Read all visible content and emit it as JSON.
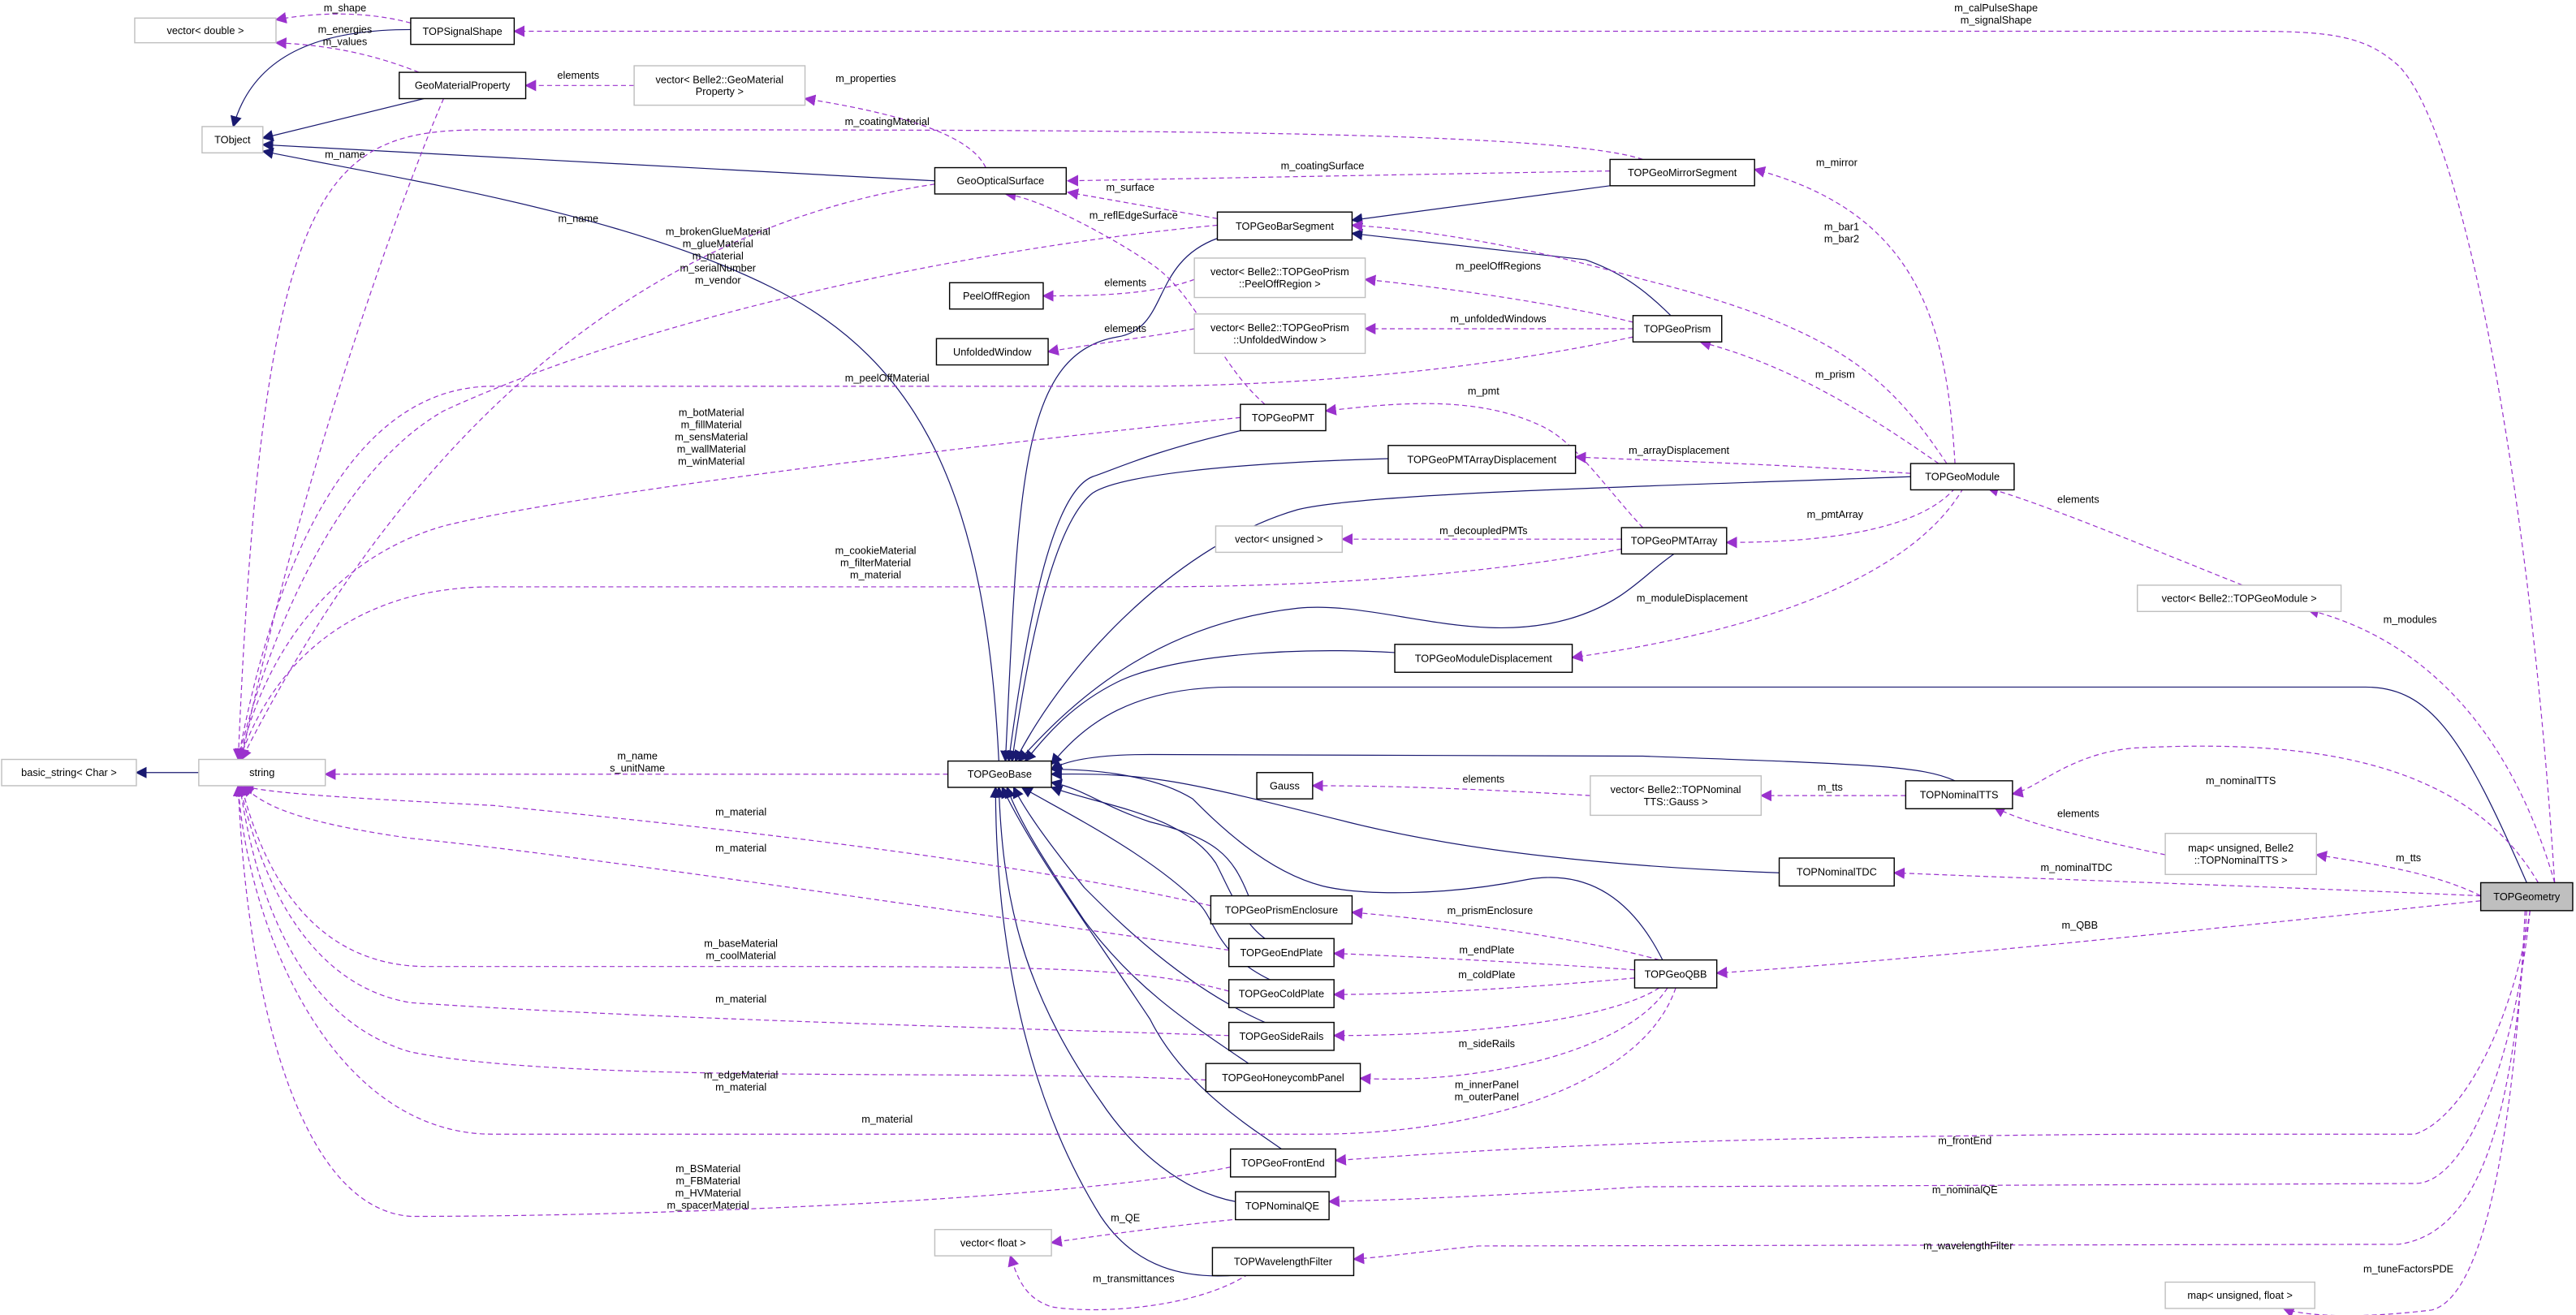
{
  "colors": {
    "inherit": "#191970",
    "member": "#9a32cd",
    "focus_fill": "#bfbfbf",
    "external_border": "#bfbfbf",
    "class_border": "#000000"
  },
  "nodes": {
    "vec_double": {
      "label": [
        "vector< double >"
      ],
      "style": "external"
    },
    "TOPSignalShape": {
      "label": [
        "TOPSignalShape"
      ],
      "style": "class"
    },
    "GeoMaterialProperty": {
      "label": [
        "GeoMaterialProperty"
      ],
      "style": "class"
    },
    "vec_GMP": {
      "label": [
        "vector< Belle2::GeoMaterial",
        "Property >"
      ],
      "style": "external"
    },
    "TObject": {
      "label": [
        "TObject"
      ],
      "style": "external"
    },
    "GeoOpticalSurface": {
      "label": [
        "GeoOpticalSurface"
      ],
      "style": "class"
    },
    "TOPGeoMirrorSegment": {
      "label": [
        "TOPGeoMirrorSegment"
      ],
      "style": "class"
    },
    "TOPGeoBarSegment": {
      "label": [
        "TOPGeoBarSegment"
      ],
      "style": "class"
    },
    "PeelOffRegion": {
      "label": [
        "PeelOffRegion"
      ],
      "style": "class"
    },
    "vec_Peel": {
      "label": [
        "vector< Belle2::TOPGeoPrism",
        "::PeelOffRegion >"
      ],
      "style": "external"
    },
    "UnfoldedWindow": {
      "label": [
        "UnfoldedWindow"
      ],
      "style": "class"
    },
    "vec_Unf": {
      "label": [
        "vector< Belle2::TOPGeoPrism",
        "::UnfoldedWindow >"
      ],
      "style": "external"
    },
    "TOPGeoPrism": {
      "label": [
        "TOPGeoPrism"
      ],
      "style": "class"
    },
    "TOPGeoPMT": {
      "label": [
        "TOPGeoPMT"
      ],
      "style": "class"
    },
    "TOPGeoPMTArrayDisplacement": {
      "label": [
        "TOPGeoPMTArrayDisplacement"
      ],
      "style": "class"
    },
    "TOPGeoModule": {
      "label": [
        "TOPGeoModule"
      ],
      "style": "class"
    },
    "vec_unsigned": {
      "label": [
        "vector< unsigned >"
      ],
      "style": "external"
    },
    "TOPGeoPMTArray": {
      "label": [
        "TOPGeoPMTArray"
      ],
      "style": "class"
    },
    "TOPGeoModuleDisplacement": {
      "label": [
        "TOPGeoModuleDisplacement"
      ],
      "style": "class"
    },
    "vec_Module": {
      "label": [
        "vector< Belle2::TOPGeoModule >"
      ],
      "style": "external"
    },
    "basic_string": {
      "label": [
        "basic_string< Char >"
      ],
      "style": "external"
    },
    "string": {
      "label": [
        "string"
      ],
      "style": "external"
    },
    "TOPGeoBase": {
      "label": [
        "TOPGeoBase"
      ],
      "style": "class"
    },
    "Gauss": {
      "label": [
        "Gauss"
      ],
      "style": "class"
    },
    "vec_Gauss": {
      "label": [
        "vector< Belle2::TOPNominal",
        "TTS::Gauss >"
      ],
      "style": "external"
    },
    "TOPNominalTTS": {
      "label": [
        "TOPNominalTTS"
      ],
      "style": "class"
    },
    "map_TTS": {
      "label": [
        "map< unsigned, Belle2",
        "::TOPNominalTTS >"
      ],
      "style": "external"
    },
    "TOPNominalTDC": {
      "label": [
        "TOPNominalTDC"
      ],
      "style": "class"
    },
    "TOPGeometry": {
      "label": [
        "TOPGeometry"
      ],
      "style": "focus"
    },
    "TOPGeoPrismEnclosure": {
      "label": [
        "TOPGeoPrismEnclosure"
      ],
      "style": "class"
    },
    "TOPGeoEndPlate": {
      "label": [
        "TOPGeoEndPlate"
      ],
      "style": "class"
    },
    "TOPGeoQBB": {
      "label": [
        "TOPGeoQBB"
      ],
      "style": "class"
    },
    "TOPGeoColdPlate": {
      "label": [
        "TOPGeoColdPlate"
      ],
      "style": "class"
    },
    "TOPGeoSideRails": {
      "label": [
        "TOPGeoSideRails"
      ],
      "style": "class"
    },
    "TOPGeoHoneycombPanel": {
      "label": [
        "TOPGeoHoneycombPanel"
      ],
      "style": "class"
    },
    "TOPGeoFrontEnd": {
      "label": [
        "TOPGeoFrontEnd"
      ],
      "style": "class"
    },
    "TOPNominalQE": {
      "label": [
        "TOPNominalQE"
      ],
      "style": "class"
    },
    "vec_float": {
      "label": [
        "vector< float >"
      ],
      "style": "external"
    },
    "TOPWavelengthFilter": {
      "label": [
        "TOPWavelengthFilter"
      ],
      "style": "class"
    },
    "map_float": {
      "label": [
        "map< unsigned, float >"
      ],
      "style": "external"
    }
  },
  "edges": [
    {
      "from": "TOPSignalShape",
      "to": "TObject",
      "kind": "inherit",
      "label": []
    },
    {
      "from": "GeoMaterialProperty",
      "to": "TObject",
      "kind": "inherit",
      "label": []
    },
    {
      "from": "GeoOpticalSurface",
      "to": "TObject",
      "kind": "inherit",
      "label": []
    },
    {
      "from": "TOPGeoBase",
      "to": "TObject",
      "kind": "inherit",
      "label": []
    },
    {
      "from": "TOPGeoMirrorSegment",
      "to": "TOPGeoBarSegment",
      "kind": "inherit",
      "label": []
    },
    {
      "from": "TOPGeoPrism",
      "to": "TOPGeoBarSegment",
      "kind": "inherit",
      "label": []
    },
    {
      "from": "TOPGeoBarSegment",
      "to": "TOPGeoBase",
      "kind": "inherit",
      "label": []
    },
    {
      "from": "TOPGeoPMT",
      "to": "TOPGeoBase",
      "kind": "inherit",
      "label": []
    },
    {
      "from": "TOPGeoPMTArrayDisplacement",
      "to": "TOPGeoBase",
      "kind": "inherit",
      "label": []
    },
    {
      "from": "TOPGeoModule",
      "to": "TOPGeoBase",
      "kind": "inherit",
      "label": []
    },
    {
      "from": "TOPGeoPMTArray",
      "to": "TOPGeoBase",
      "kind": "inherit",
      "label": []
    },
    {
      "from": "TOPGeoModuleDisplacement",
      "to": "TOPGeoBase",
      "kind": "inherit",
      "label": []
    },
    {
      "from": "TOPGeometry",
      "to": "TOPGeoBase",
      "kind": "inherit",
      "label": []
    },
    {
      "from": "TOPNominalTTS",
      "to": "TOPGeoBase",
      "kind": "inherit",
      "label": []
    },
    {
      "from": "TOPNominalTDC",
      "to": "TOPGeoBase",
      "kind": "inherit",
      "label": []
    },
    {
      "from": "TOPGeoPrismEnclosure",
      "to": "TOPGeoBase",
      "kind": "inherit",
      "label": []
    },
    {
      "from": "TOPGeoEndPlate",
      "to": "TOPGeoBase",
      "kind": "inherit",
      "label": []
    },
    {
      "from": "TOPGeoQBB",
      "to": "TOPGeoBase",
      "kind": "inherit",
      "label": []
    },
    {
      "from": "TOPGeoColdPlate",
      "to": "TOPGeoBase",
      "kind": "inherit",
      "label": []
    },
    {
      "from": "TOPGeoSideRails",
      "to": "TOPGeoBase",
      "kind": "inherit",
      "label": []
    },
    {
      "from": "TOPGeoHoneycombPanel",
      "to": "TOPGeoBase",
      "kind": "inherit",
      "label": []
    },
    {
      "from": "TOPGeoFrontEnd",
      "to": "TOPGeoBase",
      "kind": "inherit",
      "label": []
    },
    {
      "from": "TOPNominalQE",
      "to": "TOPGeoBase",
      "kind": "inherit",
      "label": []
    },
    {
      "from": "TOPWavelengthFilter",
      "to": "TOPGeoBase",
      "kind": "inherit",
      "label": []
    },
    {
      "from": "string",
      "to": "basic_string",
      "kind": "inherit",
      "label": []
    },
    {
      "from": "TOPSignalShape",
      "to": "vec_double",
      "kind": "member",
      "label": [
        "m_shape"
      ]
    },
    {
      "from": "GeoMaterialProperty",
      "to": "vec_double",
      "kind": "member",
      "label": [
        "m_energies",
        "m_values"
      ]
    },
    {
      "from": "vec_GMP",
      "to": "GeoMaterialProperty",
      "kind": "member",
      "label": [
        "elements"
      ]
    },
    {
      "from": "GeoMaterialProperty",
      "to": "string",
      "kind": "member",
      "label": [
        "m_name"
      ]
    },
    {
      "from": "GeoOpticalSurface",
      "to": "vec_GMP",
      "kind": "member",
      "label": [
        "m_properties"
      ]
    },
    {
      "from": "GeoOpticalSurface",
      "to": "string",
      "kind": "member",
      "label": [
        "m_name"
      ]
    },
    {
      "from": "TOPGeoMirrorSegment",
      "to": "string",
      "kind": "member",
      "label": [
        "m_coatingMaterial"
      ]
    },
    {
      "from": "TOPGeoMirrorSegment",
      "to": "GeoOpticalSurface",
      "kind": "member",
      "label": [
        "m_coatingSurface"
      ]
    },
    {
      "from": "TOPGeoBarSegment",
      "to": "GeoOpticalSurface",
      "kind": "member",
      "label": [
        "m_surface"
      ]
    },
    {
      "from": "TOPGeoBarSegment",
      "to": "string",
      "kind": "member",
      "label": [
        "m_brokenGlueMaterial",
        "m_glueMaterial",
        "m_material",
        "m_serialNumber",
        "m_vendor"
      ]
    },
    {
      "from": "TOPGeoPMT",
      "to": "GeoOpticalSurface",
      "kind": "member",
      "label": [
        "m_reflEdgeSurface"
      ]
    },
    {
      "from": "vec_Peel",
      "to": "PeelOffRegion",
      "kind": "member",
      "label": [
        "elements"
      ]
    },
    {
      "from": "vec_Unf",
      "to": "UnfoldedWindow",
      "kind": "member",
      "label": [
        "elements"
      ]
    },
    {
      "from": "TOPGeoPrism",
      "to": "vec_Peel",
      "kind": "member",
      "label": [
        "m_peelOffRegions"
      ]
    },
    {
      "from": "TOPGeoPrism",
      "to": "vec_Unf",
      "kind": "member",
      "label": [
        "m_unfoldedWindows"
      ]
    },
    {
      "from": "TOPGeoPrism",
      "to": "string",
      "kind": "member",
      "label": [
        "m_peelOffMaterial"
      ]
    },
    {
      "from": "TOPGeoPMT",
      "to": "string",
      "kind": "member",
      "label": [
        "m_botMaterial",
        "m_fillMaterial",
        "m_sensMaterial",
        "m_wallMaterial",
        "m_winMaterial"
      ]
    },
    {
      "from": "TOPGeoPMTArray",
      "to": "TOPGeoPMT",
      "kind": "member",
      "label": [
        "m_pmt"
      ]
    },
    {
      "from": "TOPGeoModule",
      "to": "TOPGeoPMTArrayDisplacement",
      "kind": "member",
      "label": [
        "m_arrayDisplacement"
      ]
    },
    {
      "from": "TOPGeoModule",
      "to": "TOPGeoMirrorSegment",
      "kind": "member",
      "label": [
        "m_mirror"
      ]
    },
    {
      "from": "TOPGeoModule",
      "to": "TOPGeoBarSegment",
      "kind": "member",
      "label": [
        "m_bar1",
        "m_bar2"
      ]
    },
    {
      "from": "TOPGeoModule",
      "to": "TOPGeoPrism",
      "kind": "member",
      "label": [
        "m_prism"
      ]
    },
    {
      "from": "TOPGeoModule",
      "to": "TOPGeoPMTArray",
      "kind": "member",
      "label": [
        "m_pmtArray"
      ]
    },
    {
      "from": "TOPGeoModule",
      "to": "TOPGeoModuleDisplacement",
      "kind": "member",
      "label": [
        "m_moduleDisplacement"
      ]
    },
    {
      "from": "TOPGeoPMTArray",
      "to": "vec_unsigned",
      "kind": "member",
      "label": [
        "m_decoupledPMTs"
      ]
    },
    {
      "from": "TOPGeoPMTArray",
      "to": "string",
      "kind": "member",
      "label": [
        "m_cookieMaterial",
        "m_filterMaterial",
        "m_material"
      ]
    },
    {
      "from": "vec_Module",
      "to": "TOPGeoModule",
      "kind": "member",
      "label": [
        "elements"
      ]
    },
    {
      "from": "TOPGeometry",
      "to": "vec_Module",
      "kind": "member",
      "label": [
        "m_modules"
      ]
    },
    {
      "from": "TOPGeometry",
      "to": "TOPSignalShape",
      "kind": "member",
      "label": [
        "m_calPulseShape",
        "m_signalShape"
      ]
    },
    {
      "from": "TOPGeoBase",
      "to": "string",
      "kind": "member",
      "label": [
        "m_name",
        "s_unitName"
      ]
    },
    {
      "from": "vec_Gauss",
      "to": "Gauss",
      "kind": "member",
      "label": [
        "elements"
      ]
    },
    {
      "from": "TOPNominalTTS",
      "to": "vec_Gauss",
      "kind": "member",
      "label": [
        "m_tts"
      ]
    },
    {
      "from": "TOPGeometry",
      "to": "TOPNominalTTS",
      "kind": "member",
      "label": [
        "m_nominalTTS"
      ]
    },
    {
      "from": "map_TTS",
      "to": "TOPNominalTTS",
      "kind": "member",
      "label": [
        "elements"
      ]
    },
    {
      "from": "TOPGeometry",
      "to": "map_TTS",
      "kind": "member",
      "label": [
        "m_tts"
      ]
    },
    {
      "from": "TOPGeometry",
      "to": "TOPNominalTDC",
      "kind": "member",
      "label": [
        "m_nominalTDC"
      ]
    },
    {
      "from": "TOPGeometry",
      "to": "TOPGeoQBB",
      "kind": "member",
      "label": [
        "m_QBB"
      ]
    },
    {
      "from": "TOPGeoQBB",
      "to": "TOPGeoPrismEnclosure",
      "kind": "member",
      "label": [
        "m_prismEnclosure"
      ]
    },
    {
      "from": "TOPGeoQBB",
      "to": "TOPGeoEndPlate",
      "kind": "member",
      "label": [
        "m_endPlate"
      ]
    },
    {
      "from": "TOPGeoQBB",
      "to": "TOPGeoColdPlate",
      "kind": "member",
      "label": [
        "m_coldPlate"
      ]
    },
    {
      "from": "TOPGeoQBB",
      "to": "TOPGeoSideRails",
      "kind": "member",
      "label": [
        "m_sideRails"
      ]
    },
    {
      "from": "TOPGeoQBB",
      "to": "TOPGeoHoneycombPanel",
      "kind": "member",
      "label": [
        "m_innerPanel",
        "m_outerPanel"
      ]
    },
    {
      "from": "TOPGeoQBB",
      "to": "string",
      "kind": "member",
      "label": [
        "m_material"
      ]
    },
    {
      "from": "TOPGeoPrismEnclosure",
      "to": "string",
      "kind": "member",
      "label": [
        "m_material"
      ]
    },
    {
      "from": "TOPGeoEndPlate",
      "to": "string",
      "kind": "member",
      "label": [
        "m_material"
      ]
    },
    {
      "from": "TOPGeoColdPlate",
      "to": "string",
      "kind": "member",
      "label": [
        "m_baseMaterial",
        "m_coolMaterial"
      ]
    },
    {
      "from": "TOPGeoSideRails",
      "to": "string",
      "kind": "member",
      "label": [
        "m_material"
      ]
    },
    {
      "from": "TOPGeoHoneycombPanel",
      "to": "string",
      "kind": "member",
      "label": [
        "m_edgeMaterial",
        "m_material"
      ]
    },
    {
      "from": "TOPGeoFrontEnd",
      "to": "string",
      "kind": "member",
      "label": [
        "m_BSMaterial",
        "m_FBMaterial",
        "m_HVMaterial",
        "m_spacerMaterial"
      ]
    },
    {
      "from": "TOPGeometry",
      "to": "TOPGeoFrontEnd",
      "kind": "member",
      "label": [
        "m_frontEnd"
      ]
    },
    {
      "from": "TOPGeometry",
      "to": "TOPNominalQE",
      "kind": "member",
      "label": [
        "m_nominalQE"
      ]
    },
    {
      "from": "TOPNominalQE",
      "to": "vec_float",
      "kind": "member",
      "label": [
        "m_QE"
      ]
    },
    {
      "from": "TOPGeometry",
      "to": "TOPWavelengthFilter",
      "kind": "member",
      "label": [
        "m_wavelengthFilter"
      ]
    },
    {
      "from": "TOPWavelengthFilter",
      "to": "vec_float",
      "kind": "member",
      "label": [
        "m_transmittances"
      ]
    },
    {
      "from": "TOPGeometry",
      "to": "map_float",
      "kind": "member",
      "label": [
        "m_tuneFactorsPDE"
      ]
    }
  ]
}
